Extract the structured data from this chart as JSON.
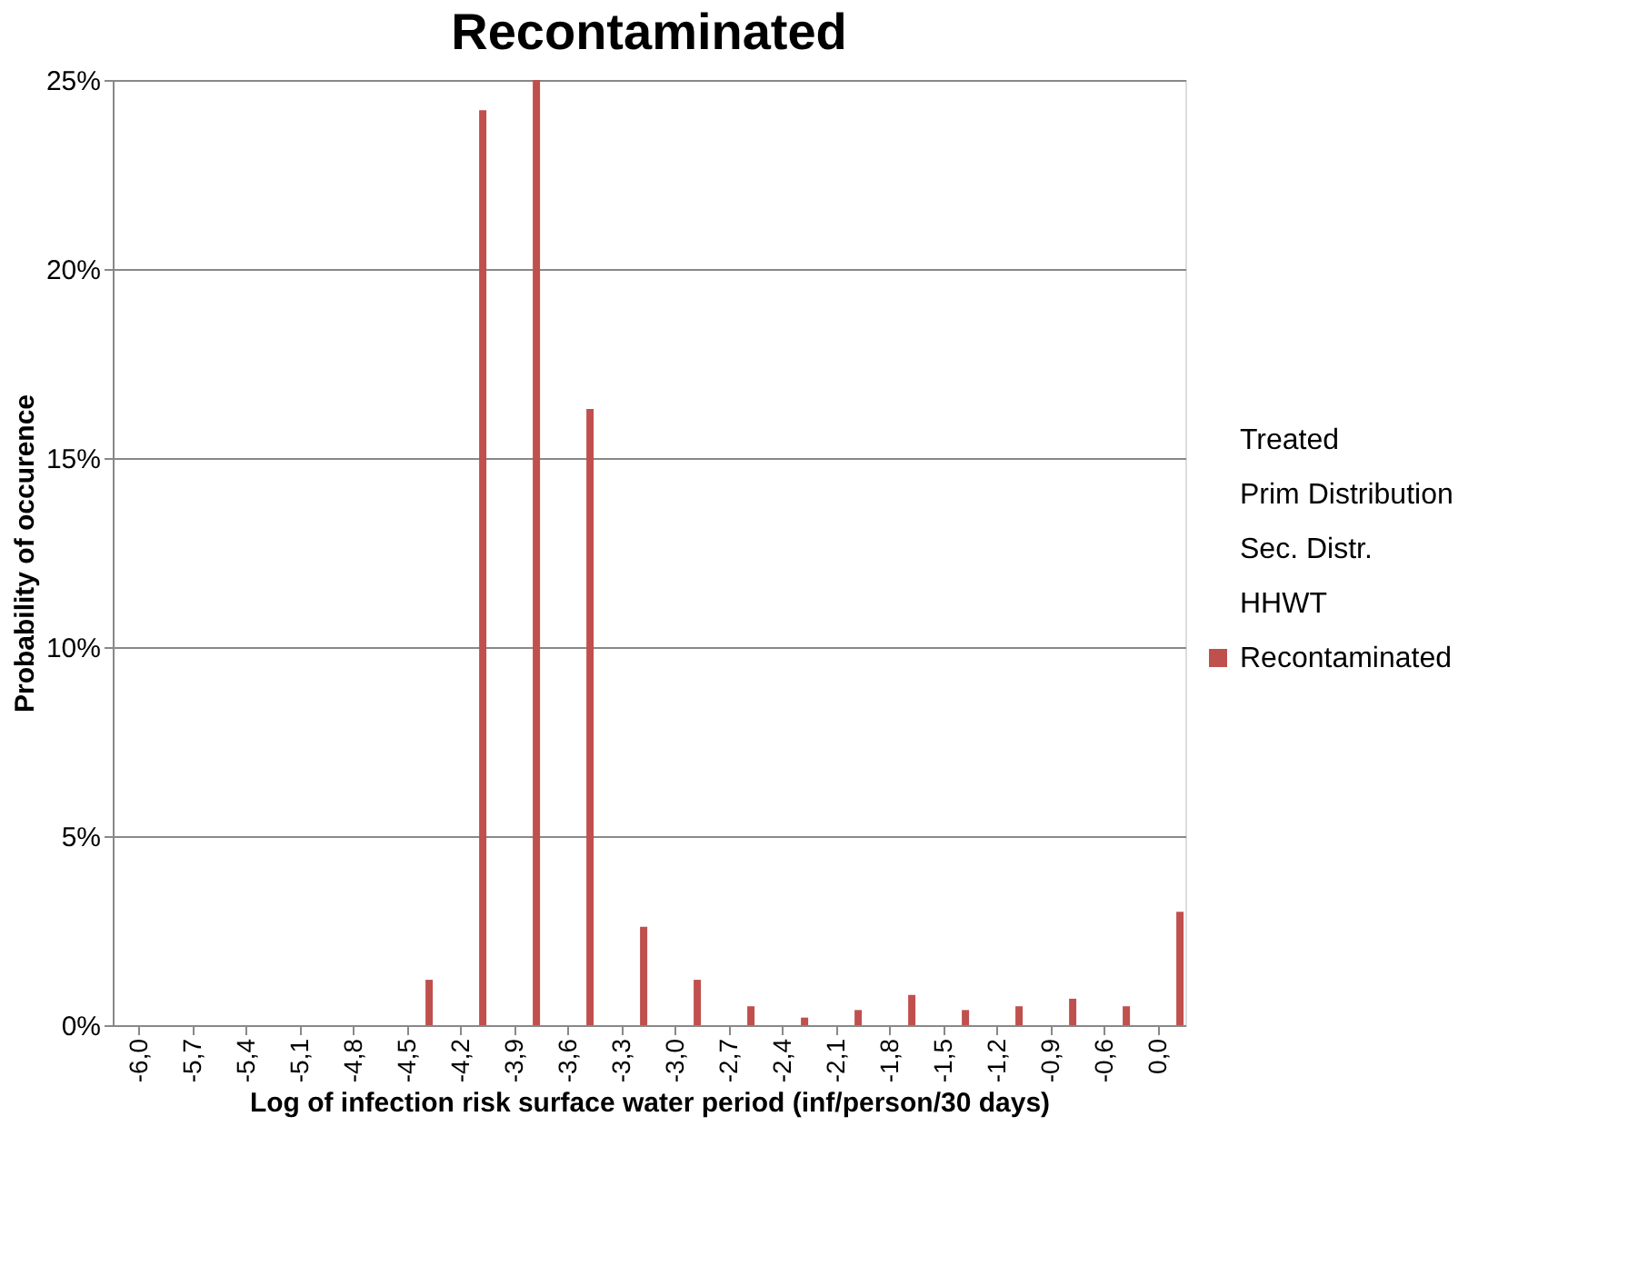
{
  "chart_data": {
    "type": "bar",
    "title": "Recontaminated",
    "xlabel": "Log of infection risk surface water period (inf/person/30 days)",
    "ylabel": "Probability of occurence",
    "categories": [
      "-6,0",
      "-5,7",
      "-5,4",
      "-5,1",
      "-4,8",
      "-4,5",
      "-4,2",
      "-3,9",
      "-3,6",
      "-3,3",
      "-3,0",
      "-2,7",
      "-2,4",
      "-2,1",
      "-1,8",
      "-1,5",
      "-1,2",
      "-0,9",
      "-0,6",
      "0,0"
    ],
    "series": [
      {
        "name": "Treated",
        "values": [
          null,
          null,
          null,
          null,
          null,
          null,
          null,
          null,
          null,
          null,
          null,
          null,
          null,
          null,
          null,
          null,
          null,
          null,
          null,
          null
        ]
      },
      {
        "name": "Prim Distribution",
        "values": [
          null,
          null,
          null,
          null,
          null,
          null,
          null,
          null,
          null,
          null,
          null,
          null,
          null,
          null,
          null,
          null,
          null,
          null,
          null,
          null
        ]
      },
      {
        "name": "Sec. Distr.",
        "values": [
          null,
          null,
          null,
          null,
          null,
          null,
          null,
          null,
          null,
          null,
          null,
          null,
          null,
          null,
          null,
          null,
          null,
          null,
          null,
          null
        ]
      },
      {
        "name": "HHWT",
        "values": [
          null,
          null,
          null,
          null,
          null,
          null,
          null,
          null,
          null,
          null,
          null,
          null,
          null,
          null,
          null,
          null,
          null,
          null,
          null,
          null
        ]
      },
      {
        "name": "Recontaminated",
        "color": "#c0504d",
        "values": [
          0,
          0,
          0,
          0,
          0,
          1.2,
          24.2,
          25,
          16.3,
          2.6,
          1.2,
          0.5,
          0.2,
          0.4,
          0.8,
          0.4,
          0.5,
          0.7,
          0.5,
          3.0
        ]
      }
    ],
    "ylim": [
      0,
      25
    ],
    "yticks": [
      {
        "value": 0,
        "label": "0%"
      },
      {
        "value": 5,
        "label": "5%"
      },
      {
        "value": 10,
        "label": "10%"
      },
      {
        "value": 15,
        "label": "15%"
      },
      {
        "value": 20,
        "label": "20%"
      },
      {
        "value": 25,
        "label": "25%"
      }
    ],
    "grid": "y",
    "legend": "right"
  }
}
